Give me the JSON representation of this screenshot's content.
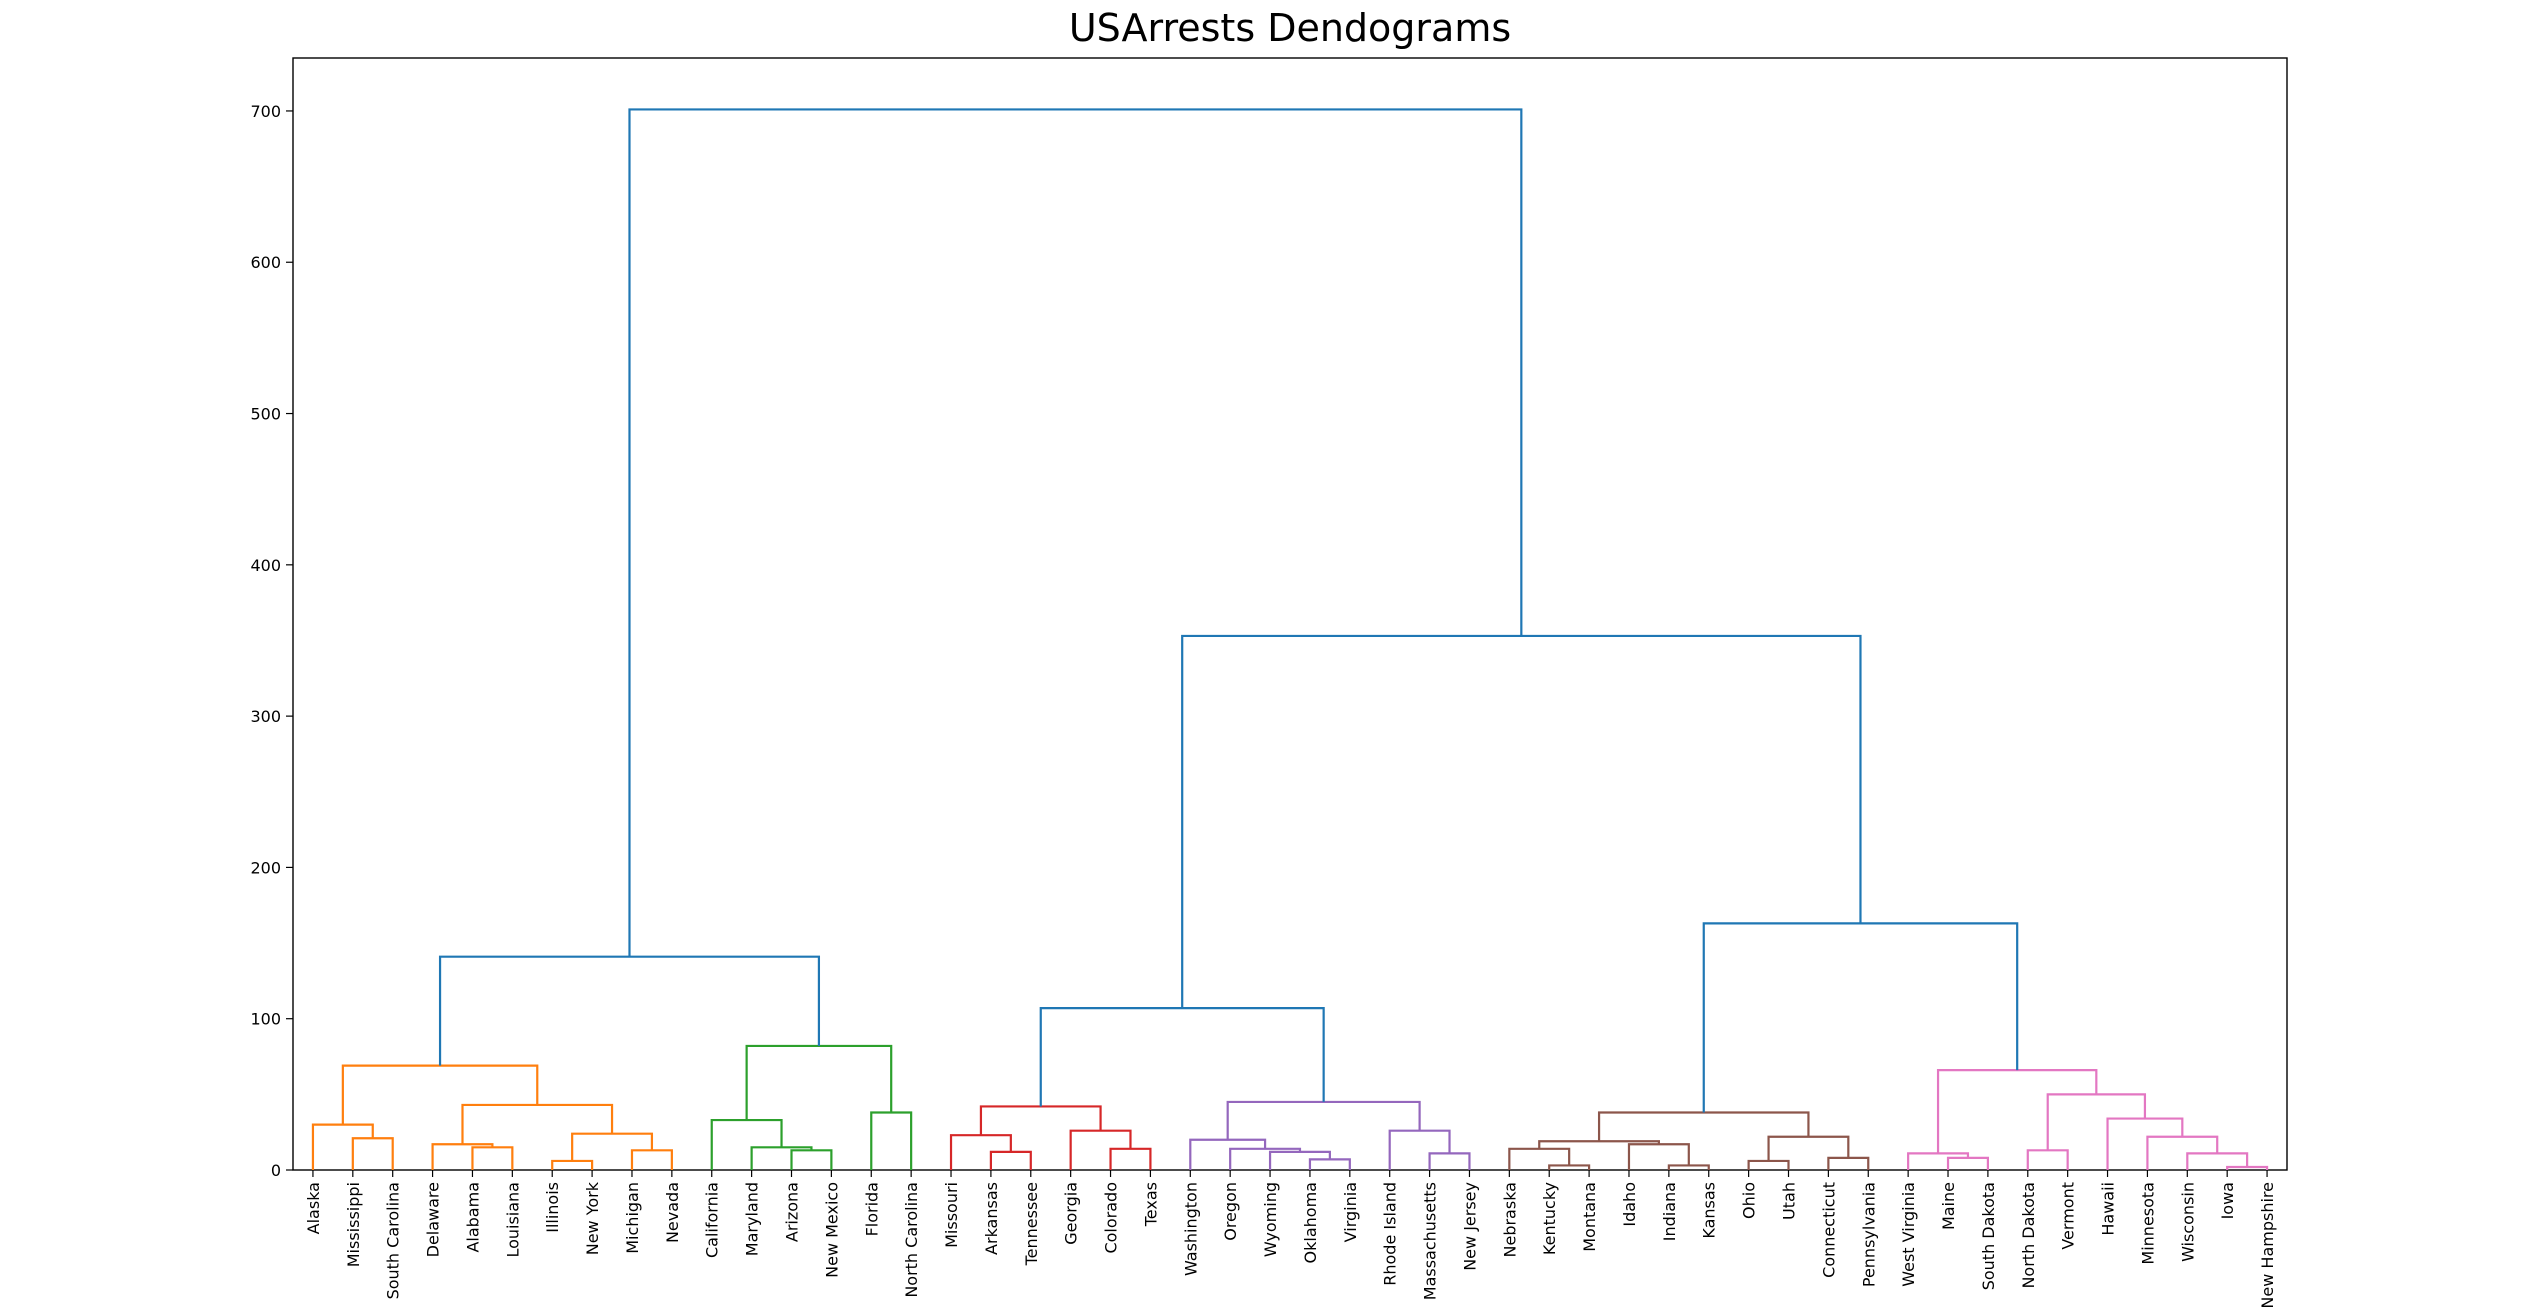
{
  "chart_data": {
    "type": "dendrogram",
    "title": "USArrests Dendograms",
    "xlabel": "",
    "ylabel": "",
    "ylim": [
      0,
      735
    ],
    "yticks": [
      0,
      100,
      200,
      300,
      400,
      500,
      600,
      700
    ],
    "grid": false,
    "leaves": [
      "Alaska",
      "Mississippi",
      "South Carolina",
      "Delaware",
      "Alabama",
      "Louisiana",
      "Illinois",
      "New York",
      "Michigan",
      "Nevada",
      "California",
      "Maryland",
      "Arizona",
      "New Mexico",
      "Florida",
      "North Carolina",
      "Missouri",
      "Arkansas",
      "Tennessee",
      "Georgia",
      "Colorado",
      "Texas",
      "Washington",
      "Oregon",
      "Wyoming",
      "Oklahoma",
      "Virginia",
      "Rhode Island",
      "Massachusetts",
      "New Jersey",
      "Nebraska",
      "Kentucky",
      "Montana",
      "Idaho",
      "Indiana",
      "Kansas",
      "Ohio",
      "Utah",
      "Connecticut",
      "Pennsylvania",
      "West Virginia",
      "Maine",
      "South Dakota",
      "North Dakota",
      "Vermont",
      "Hawaii",
      "Minnesota",
      "Wisconsin",
      "Iowa",
      "New Hampshire"
    ],
    "links": [
      {
        "left": 1.0,
        "right": 2.0,
        "height": 21,
        "color": "#ff7f0e"
      },
      {
        "left": 0.0,
        "right": 1.5,
        "height": 30,
        "color": "#ff7f0e"
      },
      {
        "left": 4.0,
        "right": 5.0,
        "height": 15,
        "color": "#ff7f0e"
      },
      {
        "left": 3.0,
        "right": 4.5,
        "height": 17,
        "color": "#ff7f0e"
      },
      {
        "left": 6.0,
        "right": 7.0,
        "height": 6,
        "color": "#ff7f0e"
      },
      {
        "left": 8.0,
        "right": 9.0,
        "height": 13,
        "color": "#ff7f0e"
      },
      {
        "left": 6.5,
        "right": 8.5,
        "height": 24,
        "color": "#ff7f0e"
      },
      {
        "left": 3.75,
        "right": 7.5,
        "height": 43,
        "color": "#ff7f0e"
      },
      {
        "left": 0.75,
        "right": 5.625,
        "height": 69,
        "color": "#ff7f0e"
      },
      {
        "left": 12.0,
        "right": 13.0,
        "height": 13,
        "color": "#2ca02c"
      },
      {
        "left": 11.0,
        "right": 12.5,
        "height": 15,
        "color": "#2ca02c"
      },
      {
        "left": 10.0,
        "right": 11.75,
        "height": 33,
        "color": "#2ca02c"
      },
      {
        "left": 14.0,
        "right": 15.0,
        "height": 38,
        "color": "#2ca02c"
      },
      {
        "left": 10.875,
        "right": 14.5,
        "height": 82,
        "color": "#2ca02c"
      },
      {
        "left": 3.1875,
        "right": 12.6875,
        "height": 141,
        "color": "#1f77b4"
      },
      {
        "left": 17.0,
        "right": 18.0,
        "height": 12,
        "color": "#d62728"
      },
      {
        "left": 16.0,
        "right": 17.5,
        "height": 23,
        "color": "#d62728"
      },
      {
        "left": 20.0,
        "right": 21.0,
        "height": 14,
        "color": "#d62728"
      },
      {
        "left": 19.0,
        "right": 20.5,
        "height": 26,
        "color": "#d62728"
      },
      {
        "left": 16.75,
        "right": 19.75,
        "height": 42,
        "color": "#d62728"
      },
      {
        "left": 25.0,
        "right": 26.0,
        "height": 7,
        "color": "#9467bd"
      },
      {
        "left": 24.0,
        "right": 25.5,
        "height": 12,
        "color": "#9467bd"
      },
      {
        "left": 23.0,
        "right": 24.75,
        "height": 14,
        "color": "#9467bd"
      },
      {
        "left": 22.0,
        "right": 23.875,
        "height": 20,
        "color": "#9467bd"
      },
      {
        "left": 28.0,
        "right": 29.0,
        "height": 11,
        "color": "#9467bd"
      },
      {
        "left": 27.0,
        "right": 28.5,
        "height": 26,
        "color": "#9467bd"
      },
      {
        "left": 22.9375,
        "right": 27.75,
        "height": 45,
        "color": "#9467bd"
      },
      {
        "left": 18.25,
        "right": 25.34375,
        "height": 107,
        "color": "#1f77b4"
      },
      {
        "left": 31.0,
        "right": 32.0,
        "height": 3,
        "color": "#8c564b"
      },
      {
        "left": 30.0,
        "right": 31.5,
        "height": 14,
        "color": "#8c564b"
      },
      {
        "left": 34.0,
        "right": 35.0,
        "height": 3,
        "color": "#8c564b"
      },
      {
        "left": 33.0,
        "right": 34.5,
        "height": 17,
        "color": "#8c564b"
      },
      {
        "left": 30.75,
        "right": 33.75,
        "height": 19,
        "color": "#8c564b"
      },
      {
        "left": 36.0,
        "right": 37.0,
        "height": 6,
        "color": "#8c564b"
      },
      {
        "left": 38.0,
        "right": 39.0,
        "height": 8,
        "color": "#8c564b"
      },
      {
        "left": 36.5,
        "right": 38.5,
        "height": 22,
        "color": "#8c564b"
      },
      {
        "left": 32.25,
        "right": 37.5,
        "height": 38,
        "color": "#8c564b"
      },
      {
        "left": 41.0,
        "right": 42.0,
        "height": 8,
        "color": "#e377c2"
      },
      {
        "left": 40.0,
        "right": 41.5,
        "height": 11,
        "color": "#e377c2"
      },
      {
        "left": 43.0,
        "right": 44.0,
        "height": 13,
        "color": "#e377c2"
      },
      {
        "left": 48.0,
        "right": 49.0,
        "height": 2,
        "color": "#e377c2"
      },
      {
        "left": 47.0,
        "right": 48.5,
        "height": 11,
        "color": "#e377c2"
      },
      {
        "left": 46.0,
        "right": 47.75,
        "height": 22,
        "color": "#e377c2"
      },
      {
        "left": 45.0,
        "right": 46.875,
        "height": 34,
        "color": "#e377c2"
      },
      {
        "left": 43.5,
        "right": 45.9375,
        "height": 50,
        "color": "#e377c2"
      },
      {
        "left": 40.75,
        "right": 44.71875,
        "height": 66,
        "color": "#e377c2"
      },
      {
        "left": 34.875,
        "right": 42.734375,
        "height": 163,
        "color": "#1f77b4"
      },
      {
        "left": 21.796875,
        "right": 38.8046875,
        "height": 353,
        "color": "#1f77b4"
      },
      {
        "left": 7.9375,
        "right": 30.30078125,
        "height": 701,
        "color": "#1f77b4"
      }
    ]
  }
}
